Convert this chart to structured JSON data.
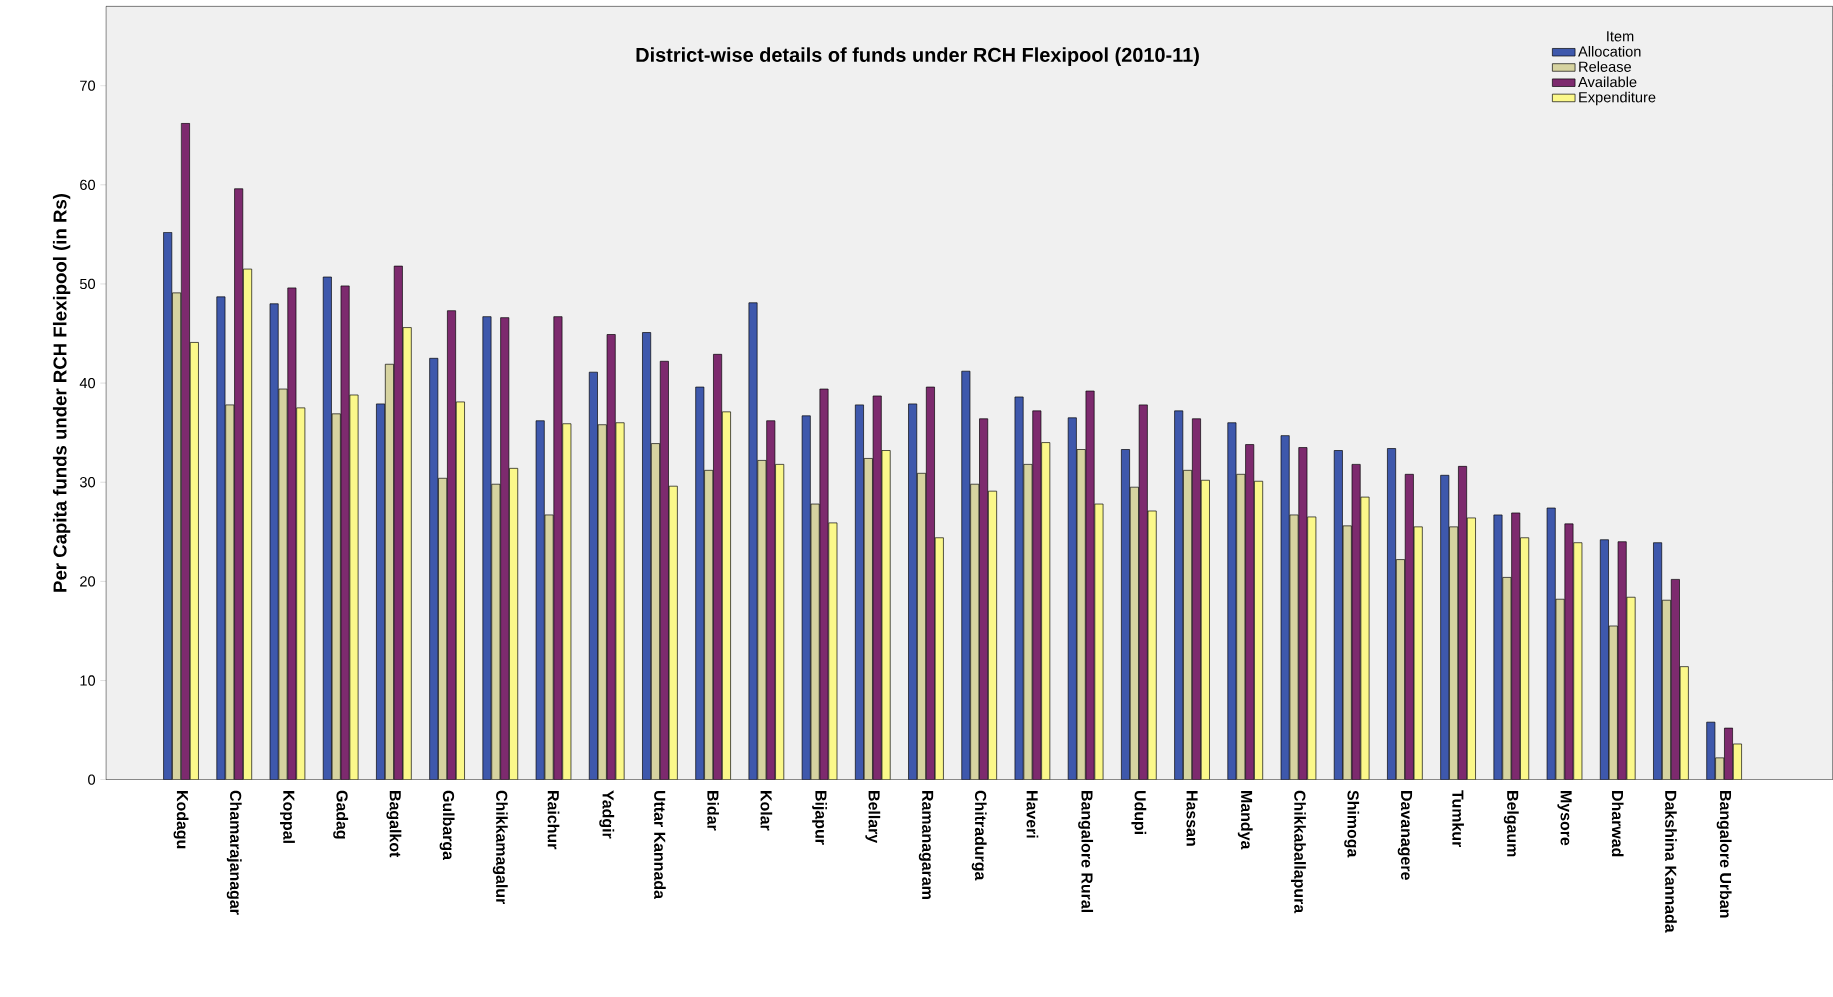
{
  "chart_data": {
    "type": "bar",
    "title": "District-wise details of funds under RCH Flexipool (2010-11)",
    "ylabel": "Per Capita funds under RCH Flexipool (in Rs)",
    "legend_title": "Item",
    "legend": "top right",
    "categories": [
      "Kodagu",
      "Chamarajanagar",
      "Koppal",
      "Gadag",
      "Bagalkot",
      "Gulbarga",
      "Chikkamagalur",
      "Raichur",
      "Yadgir",
      "Uttar Kannada",
      "Bidar",
      "Kolar",
      "Bijapur",
      "Bellary",
      "Ramanagaram",
      "Chitradurga",
      "Haveri",
      "Bangalore Rural",
      "Udupi",
      "Hassan",
      "Mandya",
      "Chikkaballapura",
      "Shimoga",
      "Davanagere",
      "Tumkur",
      "Belgaum",
      "Mysore",
      "Dharwad",
      "Dakshina Kannada",
      "Bangalore Urban"
    ],
    "ylim": [
      0,
      78
    ],
    "yticks": [
      0,
      10,
      20,
      30,
      40,
      50,
      60,
      70
    ],
    "series": [
      {
        "name": "Allocation",
        "color": "#3e58ac",
        "values": [
          55.2,
          48.7,
          48.0,
          50.7,
          37.9,
          42.5,
          46.7,
          36.2,
          41.1,
          45.1,
          39.6,
          48.1,
          36.7,
          37.8,
          37.9,
          41.2,
          38.6,
          36.5,
          33.3,
          37.2,
          36.0,
          34.7,
          33.2,
          33.4,
          30.7,
          26.7,
          27.4,
          24.2,
          23.9,
          5.8
        ]
      },
      {
        "name": "Release",
        "color": "#d6d3a0",
        "values": [
          49.1,
          37.8,
          39.4,
          36.9,
          41.9,
          30.4,
          29.8,
          26.7,
          35.8,
          33.9,
          31.2,
          32.2,
          27.8,
          32.4,
          30.9,
          29.8,
          31.8,
          33.3,
          29.5,
          31.2,
          30.8,
          26.7,
          25.6,
          22.2,
          25.5,
          20.4,
          18.2,
          15.5,
          18.1,
          2.2
        ]
      },
      {
        "name": "Available",
        "color": "#7d2a6e",
        "values": [
          66.2,
          59.6,
          49.6,
          49.8,
          51.8,
          47.3,
          46.6,
          46.7,
          44.9,
          42.2,
          42.9,
          36.2,
          39.4,
          38.7,
          39.6,
          36.4,
          37.2,
          39.2,
          37.8,
          36.4,
          33.8,
          33.5,
          31.8,
          30.8,
          31.6,
          26.9,
          25.8,
          24.0,
          20.2,
          5.2
        ]
      },
      {
        "name": "Expenditure",
        "color": "#fbf88a",
        "values": [
          44.1,
          51.5,
          37.5,
          38.8,
          45.6,
          38.1,
          31.4,
          35.9,
          36.0,
          29.6,
          37.1,
          31.8,
          25.9,
          33.2,
          24.4,
          29.1,
          34.0,
          27.8,
          27.1,
          30.2,
          30.1,
          26.5,
          28.5,
          25.5,
          26.4,
          24.4,
          23.9,
          18.4,
          11.4,
          3.6
        ]
      }
    ]
  }
}
